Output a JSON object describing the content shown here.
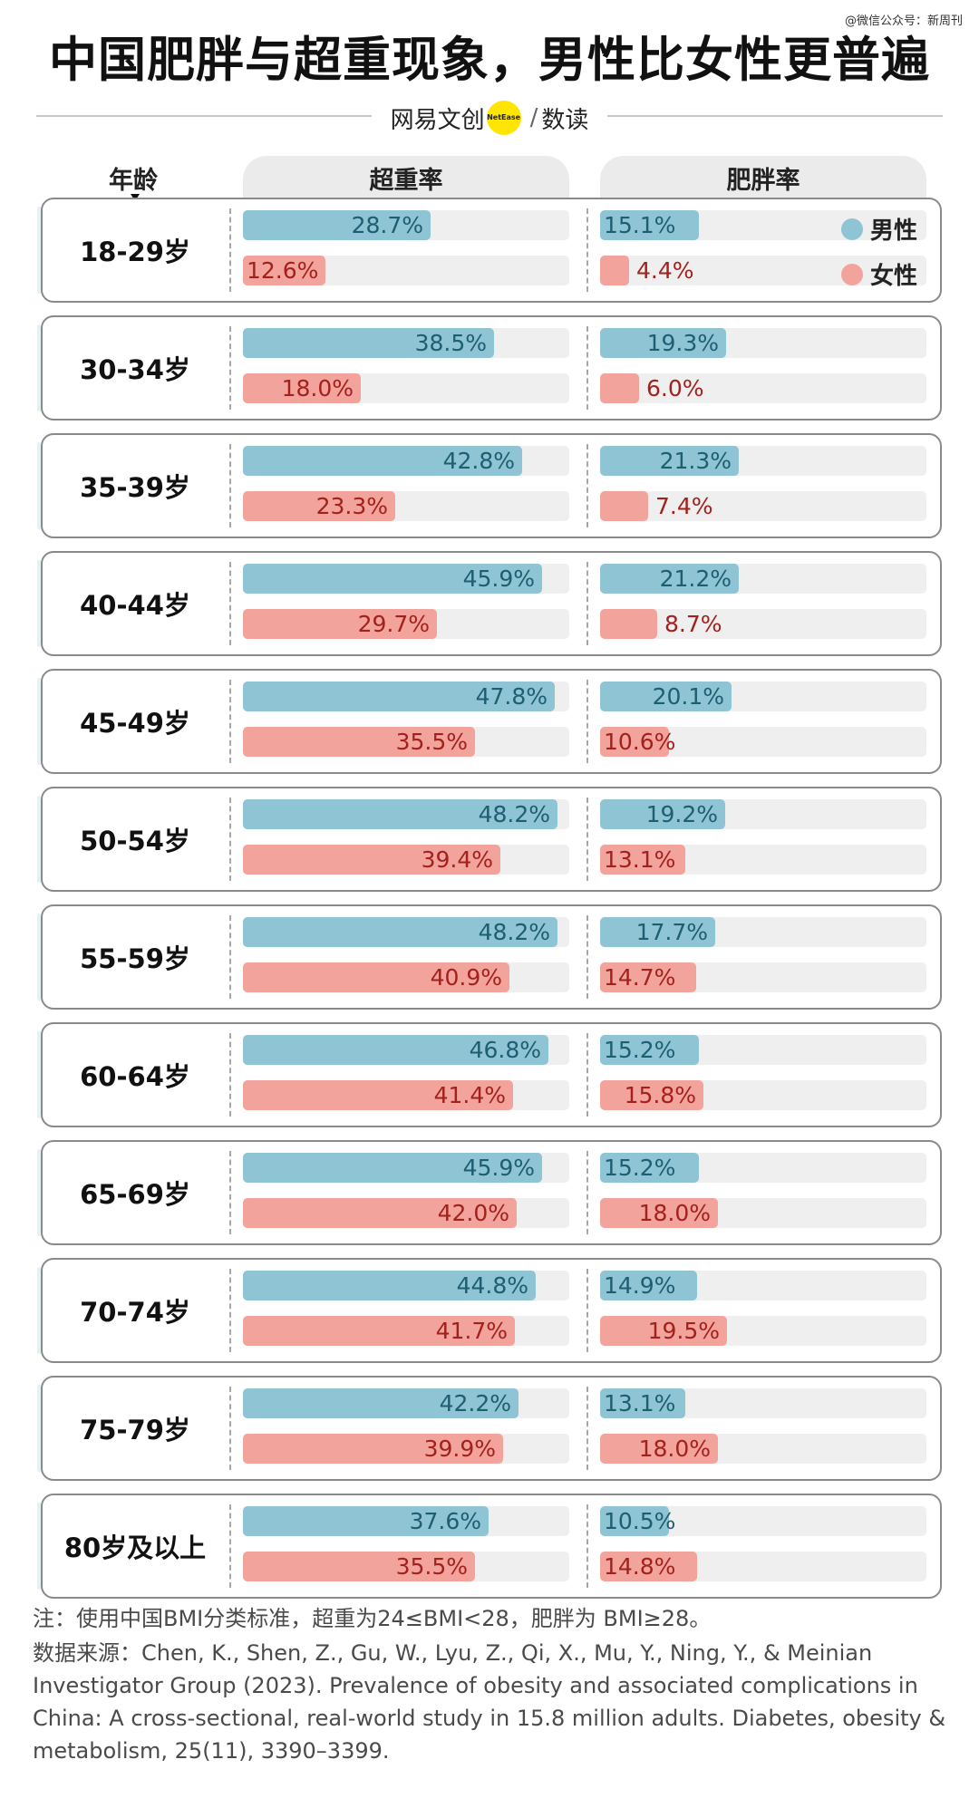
{
  "watermark": "@微信公众号：新周刊",
  "title": "中国肥胖与超重现象，男性比女性更普遍",
  "brand": {
    "part1": "网易文创",
    "logo_text": "NetEase",
    "slash": "/",
    "part2": "数读"
  },
  "headers": {
    "age": "年龄",
    "overweight": "超重率",
    "obesity": "肥胖率"
  },
  "legend": {
    "male": "男性",
    "female": "女性"
  },
  "colors": {
    "male": "#8ec4d4",
    "female": "#f2a39b",
    "male_text": "#1d5e72",
    "female_text": "#a3211c",
    "track": "#efefef"
  },
  "chart_data": {
    "type": "bar",
    "orientation": "horizontal",
    "title": "中国肥胖与超重现象，男性比女性更普遍",
    "unit": "%",
    "xlim": [
      0,
      50
    ],
    "legend_position": "top-right",
    "categories": [
      "18-29岁",
      "30-34岁",
      "35-39岁",
      "40-44岁",
      "45-49岁",
      "50-54岁",
      "55-59岁",
      "60-64岁",
      "65-69岁",
      "70-74岁",
      "75-79岁",
      "80岁及以上"
    ],
    "panels": [
      {
        "name": "超重率",
        "series": [
          {
            "name": "男性",
            "values": [
              28.7,
              38.5,
              42.8,
              45.9,
              47.8,
              48.2,
              48.2,
              46.8,
              45.9,
              44.8,
              42.2,
              37.6
            ]
          },
          {
            "name": "女性",
            "values": [
              12.6,
              18.0,
              23.3,
              29.7,
              35.5,
              39.4,
              40.9,
              41.4,
              42.0,
              41.7,
              39.9,
              35.5
            ]
          }
        ]
      },
      {
        "name": "肥胖率",
        "series": [
          {
            "name": "男性",
            "values": [
              15.1,
              19.3,
              21.3,
              21.2,
              20.1,
              19.2,
              17.7,
              15.2,
              15.2,
              14.9,
              13.1,
              10.5
            ]
          },
          {
            "name": "女性",
            "values": [
              4.4,
              6.0,
              7.4,
              8.7,
              10.6,
              13.1,
              14.7,
              15.8,
              18.0,
              19.5,
              18.0,
              14.8
            ]
          }
        ]
      }
    ],
    "labels": {
      "overweight_male": [
        "28.7%",
        "38.5%",
        "42.8%",
        "45.9%",
        "47.8%",
        "48.2%",
        "48.2%",
        "46.8%",
        "45.9%",
        "44.8%",
        "42.2%",
        "37.6%"
      ],
      "overweight_female": [
        "12.6%",
        "18.0%",
        "23.3%",
        "29.7%",
        "35.5%",
        "39.4%",
        "40.9%",
        "41.4%",
        "42.0%",
        "41.7%",
        "39.9%",
        "35.5%"
      ],
      "obesity_male": [
        "15.1%",
        "19.3%",
        "21.3%",
        "21.2%",
        "20.1%",
        "19.2%",
        "17.7%",
        "15.2%",
        "15.2%",
        "14.9%",
        "13.1%",
        "10.5%"
      ],
      "obesity_female": [
        "4.4%",
        "6.0%",
        "7.4%",
        "8.7%",
        "10.6%",
        "13.1%",
        "14.7%",
        "15.8%",
        "18.0%",
        "19.5%",
        "18.0%",
        "14.8%"
      ]
    }
  },
  "footer": {
    "note": "注：使用中国BMI分类标准，超重为24≤BMI<28，肥胖为 BMI≥28。",
    "source": "数据来源：Chen, K., Shen, Z., Gu, W., Lyu, Z., Qi, X., Mu, Y., Ning, Y., & Meinian Investigator Group (2023). Prevalence of obesity and associated complications in China: A cross-sectional, real-world study in 15.8 million adults. Diabetes, obesity & metabolism, 25(11), 3390–3399."
  }
}
